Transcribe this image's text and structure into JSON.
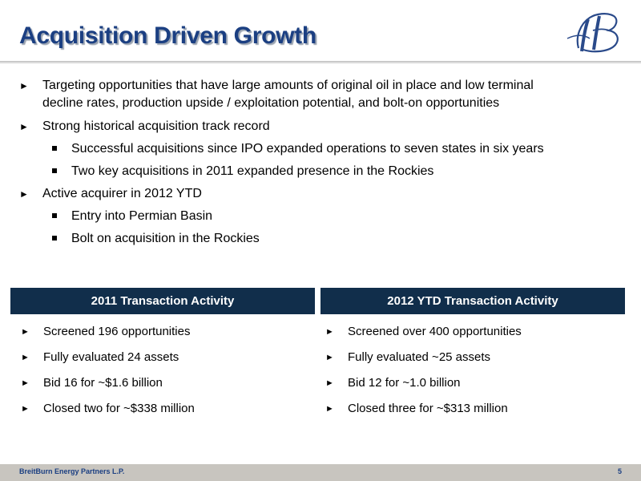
{
  "slide": {
    "title": "Acquisition Driven Growth",
    "logo_icon": "breitburn-bb-monogram-logo",
    "accent_color": "#1b3f82",
    "header_box_color": "#112e4b"
  },
  "bullets": [
    {
      "level": 1,
      "lines": [
        "Targeting opportunities that have large amounts of original oil in place and low terminal",
        "decline rates, production upside / exploitation potential, and bolt-on opportunities"
      ]
    },
    {
      "level": 1,
      "lines": [
        "Strong historical acquisition track record"
      ]
    },
    {
      "level": 2,
      "lines": [
        "Successful acquisitions since IPO expanded operations to seven states in six years"
      ]
    },
    {
      "level": 2,
      "lines": [
        "Two key acquisitions in 2011 expanded presence in the Rockies"
      ]
    },
    {
      "level": 1,
      "lines": [
        "Active acquirer in 2012 YTD"
      ]
    },
    {
      "level": 2,
      "lines": [
        "Entry into Permian Basin"
      ]
    },
    {
      "level": 2,
      "lines": [
        "Bolt on acquisition in the Rockies"
      ]
    }
  ],
  "columns": [
    {
      "header": "2011 Transaction Activity",
      "items": [
        "Screened 196 opportunities",
        "Fully evaluated 24 assets",
        "Bid 16 for ~$1.6 billion",
        "Closed two for ~$338 million"
      ]
    },
    {
      "header": "2012 YTD Transaction Activity",
      "items": [
        "Screened over 400 opportunities",
        "Fully evaluated ~25 assets",
        "Bid 12 for ~1.0 billion",
        "Closed three for ~$313 million"
      ]
    }
  ],
  "footer": {
    "company": "BreitBurn Energy Partners L.P.",
    "page_number": "5"
  },
  "markers": {
    "arrow": "►"
  }
}
